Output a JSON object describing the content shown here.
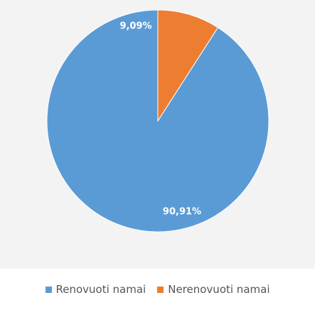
{
  "chart_data": {
    "type": "pie",
    "slices": [
      {
        "name": "Renovuoti namai",
        "value": 90.91,
        "label": "90,91%",
        "color": "#5b9bd5"
      },
      {
        "name": "Nerenovuoti namai",
        "value": 9.09,
        "label": "9,09%",
        "color": "#ed7d31"
      }
    ],
    "legend_position": "bottom"
  }
}
